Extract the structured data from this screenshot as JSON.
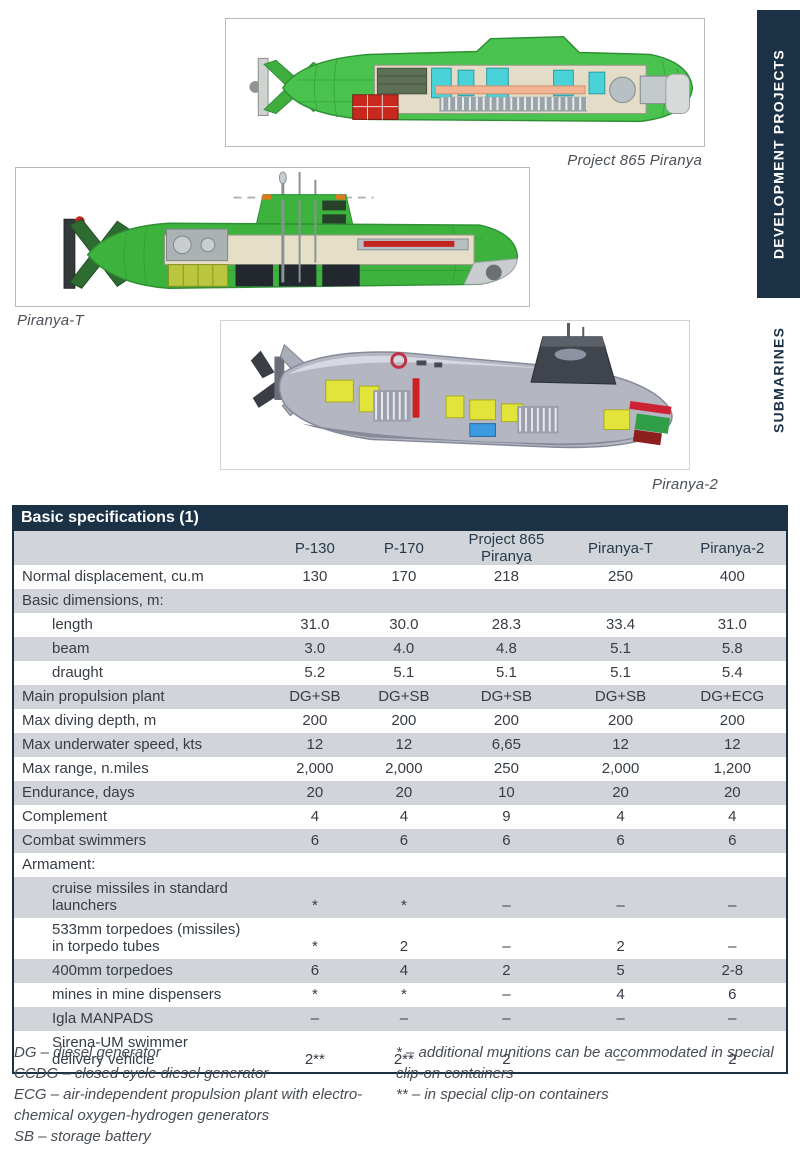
{
  "sidebar": {
    "tab_development": "DEVELOPMENT PROJECTS",
    "tab_submarines": "SUBMARINES"
  },
  "figures": [
    {
      "caption": "Project 865 Piranya"
    },
    {
      "caption": "Piranya-T"
    },
    {
      "caption": "Piranya-2"
    }
  ],
  "table": {
    "title": "Basic specifications (1)",
    "columns": [
      "P-130",
      "P-170",
      "Project 865 Piranya",
      "Piranya-T",
      "Piranya-2"
    ],
    "rows": [
      {
        "label": "Normal displacement, cu.m",
        "indent": false,
        "values": [
          "130",
          "170",
          "218",
          "250",
          "400"
        ]
      },
      {
        "label": "Basic dimensions, m:",
        "indent": false,
        "values": [
          "",
          "",
          "",
          "",
          ""
        ]
      },
      {
        "label": "length",
        "indent": true,
        "values": [
          "31.0",
          "30.0",
          "28.3",
          "33.4",
          "31.0"
        ]
      },
      {
        "label": "beam",
        "indent": true,
        "values": [
          "3.0",
          "4.0",
          "4.8",
          "5.1",
          "5.8"
        ]
      },
      {
        "label": "draught",
        "indent": true,
        "values": [
          "5.2",
          "5.1",
          "5.1",
          "5.1",
          "5.4"
        ]
      },
      {
        "label": "Main propulsion plant",
        "indent": false,
        "values": [
          "DG+SB",
          "DG+SB",
          "DG+SB",
          "DG+SB",
          "DG+ECG"
        ]
      },
      {
        "label": "Max diving depth, m",
        "indent": false,
        "values": [
          "200",
          "200",
          "200",
          "200",
          "200"
        ]
      },
      {
        "label": "Max underwater speed, kts",
        "indent": false,
        "values": [
          "12",
          "12",
          "6,65",
          "12",
          "12"
        ]
      },
      {
        "label": "Max range, n.miles",
        "indent": false,
        "values": [
          "2,000",
          "2,000",
          "250",
          "2,000",
          "1,200"
        ]
      },
      {
        "label": "Endurance, days",
        "indent": false,
        "values": [
          "20",
          "20",
          "10",
          "20",
          "20"
        ]
      },
      {
        "label": "Complement",
        "indent": false,
        "values": [
          "4",
          "4",
          "9",
          "4",
          "4"
        ]
      },
      {
        "label": "Combat swimmers",
        "indent": false,
        "values": [
          "6",
          "6",
          "6",
          "6",
          "6"
        ]
      },
      {
        "label": "Armament:",
        "indent": false,
        "values": [
          "",
          "",
          "",
          "",
          ""
        ]
      },
      {
        "label": "cruise missiles in standard launchers",
        "indent": true,
        "values": [
          "*",
          "*",
          "–",
          "–",
          "–"
        ]
      },
      {
        "label": "533mm torpedoes (missiles)\nin torpedo tubes",
        "indent": true,
        "values": [
          "*",
          "2",
          "–",
          "2",
          "–"
        ]
      },
      {
        "label": "400mm torpedoes",
        "indent": true,
        "values": [
          "6",
          "4",
          "2",
          "5",
          "2-8"
        ]
      },
      {
        "label": "mines in mine dispensers",
        "indent": true,
        "values": [
          "*",
          "*",
          "–",
          "4",
          "6"
        ]
      },
      {
        "label": "Igla MANPADS",
        "indent": true,
        "values": [
          "–",
          "–",
          "–",
          "–",
          "–"
        ]
      },
      {
        "label": "Sirena-UM swimmer\ndelivery vehicle",
        "indent": true,
        "values": [
          "2**",
          "2**",
          "2",
          "–",
          "2"
        ]
      }
    ]
  },
  "footnotes": {
    "left": [
      "DG – diesel generator",
      "CCDG – closed cycle diesel generator",
      "ECG – air-independent propulsion plant with electro-chemical oxygen-hydrogen generators",
      "SB – storage battery"
    ],
    "right": [
      "*  – additional munitions can be accommodated in special clip-on containers",
      "** – in special clip-on containers"
    ]
  },
  "colors": {
    "navy": "#1b3146",
    "row_shade": "#d1d5da",
    "body_text": "#363d46"
  }
}
